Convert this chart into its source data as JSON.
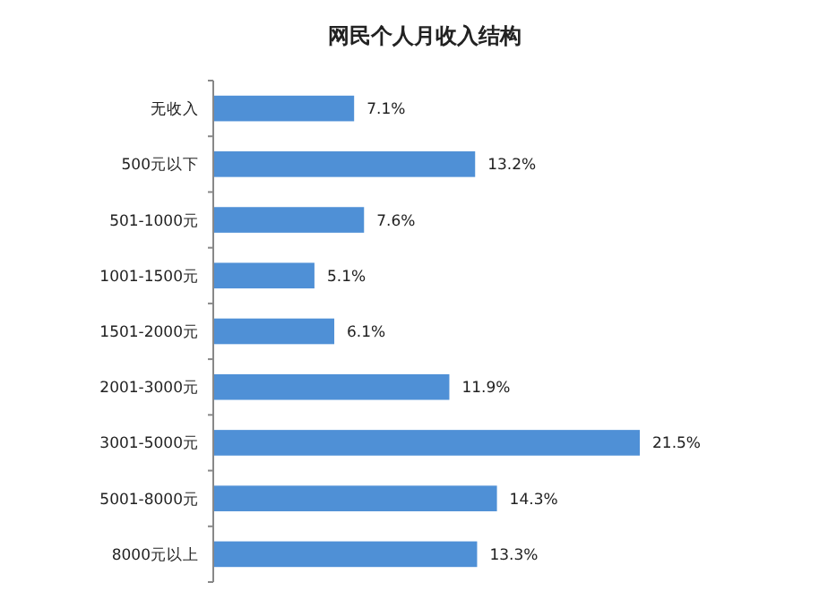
{
  "chart_data": {
    "type": "bar",
    "orientation": "horizontal",
    "title": "网民个人月收入结构",
    "categories": [
      "无收入",
      "500元以下",
      "501-1000元",
      "1001-1500元",
      "1501-2000元",
      "2001-3000元",
      "3001-5000元",
      "5001-8000元",
      "8000元以上"
    ],
    "values": [
      7.1,
      13.2,
      7.6,
      5.1,
      6.1,
      11.9,
      21.5,
      14.3,
      13.3
    ],
    "value_labels": [
      "7.1%",
      "13.2%",
      "7.6%",
      "5.1%",
      "6.1%",
      "11.9%",
      "21.5%",
      "14.3%",
      "13.3%"
    ],
    "color": "#4f90d6"
  }
}
